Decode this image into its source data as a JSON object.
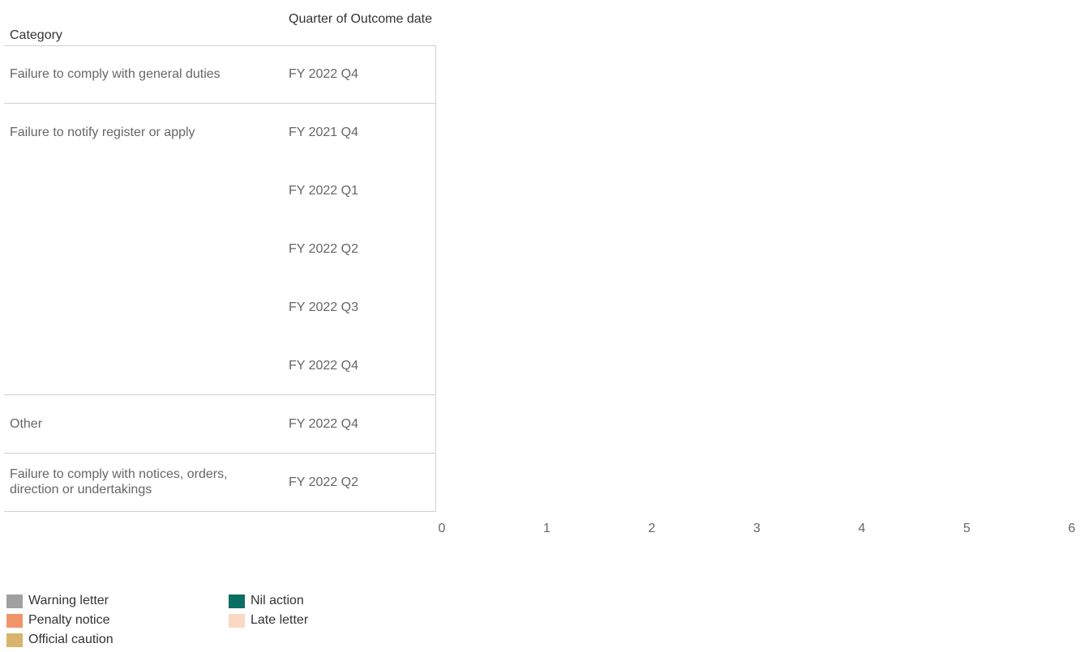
{
  "headers": {
    "category": "Category",
    "quarter": "Quarter of Outcome date"
  },
  "chart_data": {
    "type": "bar",
    "orientation": "horizontal",
    "rows": [
      {
        "category": "Failure to comply with general duties",
        "quarter": "FY 2022 Q4",
        "values": {}
      },
      {
        "category": "Failure to notify register or apply",
        "quarter": "FY 2021 Q4",
        "values": {}
      },
      {
        "category": "",
        "quarter": "FY 2022 Q1",
        "values": {}
      },
      {
        "category": "",
        "quarter": "FY 2022 Q2",
        "values": {}
      },
      {
        "category": "",
        "quarter": "FY 2022 Q3",
        "values": {}
      },
      {
        "category": "",
        "quarter": "FY 2022 Q4",
        "values": {}
      },
      {
        "category": "Other",
        "quarter": "FY 2022 Q4",
        "values": {}
      },
      {
        "category": "Failure to comply with notices, orders, direction or undertakings",
        "quarter": "FY 2022 Q2",
        "values": {}
      }
    ],
    "x_ticks": [
      "0",
      "1",
      "2",
      "3",
      "4",
      "5",
      "6"
    ],
    "xlim": [
      0,
      6
    ],
    "grid": false,
    "legend_position": "bottom-left",
    "series": [
      {
        "name": "Warning letter",
        "color": "#a0a0a0"
      },
      {
        "name": "Nil action",
        "color": "#0b6e62"
      },
      {
        "name": "Penalty notice",
        "color": "#f0956a"
      },
      {
        "name": "Late letter",
        "color": "#fbd8c4"
      },
      {
        "name": "Official caution",
        "color": "#d8b46c"
      }
    ]
  }
}
